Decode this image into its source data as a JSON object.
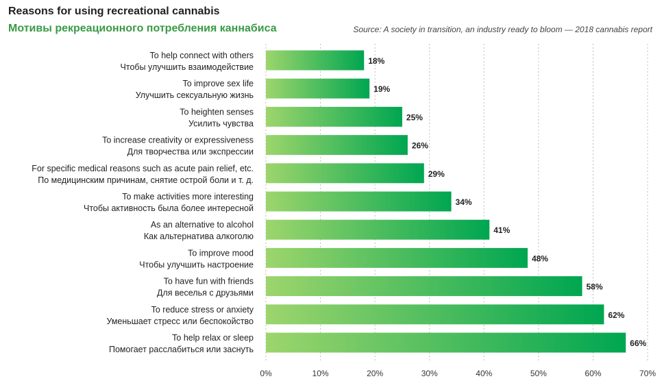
{
  "header": {
    "title": "Reasons for using recreational cannabis",
    "subtitle": "Мотивы рекреационного потребления каннабиса",
    "source": "Source: A society in transition, an industry ready to bloom — 2018 cannabis report"
  },
  "colors": {
    "bar_start": "#9dd56c",
    "bar_end": "#00a651",
    "subtitle": "#3a9a45",
    "grid": "#bdbdbd"
  },
  "chart_data": {
    "type": "bar",
    "orientation": "horizontal",
    "title": "Reasons for using recreational cannabis",
    "subtitle": "Мотивы рекреационного потребления каннабиса",
    "categories": [
      {
        "en": "To help connect with others",
        "ru": "Чтобы улучшить взаимодействие"
      },
      {
        "en": "To improve sex life",
        "ru": "Улучшить сексуальную жизнь"
      },
      {
        "en": "To heighten senses",
        "ru": "Усилить чувства"
      },
      {
        "en": "To increase creativity or expressiveness",
        "ru": "Для творчества или экспрессии"
      },
      {
        "en": "For specific medical reasons such as acute pain relief, etc.",
        "ru": "По медицинским причинам, снятие острой боли и т. д."
      },
      {
        "en": "To make activities more interesting",
        "ru": "Чтобы активность была более интересной"
      },
      {
        "en": "As an alternative to alcohol",
        "ru": "Как альтернатива алкоголю"
      },
      {
        "en": "To improve mood",
        "ru": "Чтобы улучшить настроение"
      },
      {
        "en": "To have fun with friends",
        "ru": "Для веселья с друзьями"
      },
      {
        "en": "To reduce stress or anxiety",
        "ru": "Уменьшает стресс или беспокойство"
      },
      {
        "en": "To help relax or sleep",
        "ru": "Помогает расслабиться или заснуть"
      }
    ],
    "values": [
      18,
      19,
      25,
      26,
      29,
      34,
      41,
      48,
      58,
      62,
      66
    ],
    "value_labels": [
      "18%",
      "19%",
      "25%",
      "26%",
      "29%",
      "34%",
      "41%",
      "48%",
      "58%",
      "62%",
      "66%"
    ],
    "xlim": [
      0,
      70
    ],
    "ticks": [
      "0%",
      "10%",
      "20%",
      "30%",
      "40%",
      "50%",
      "60%",
      "70%"
    ],
    "grid": true,
    "legend": "none"
  }
}
